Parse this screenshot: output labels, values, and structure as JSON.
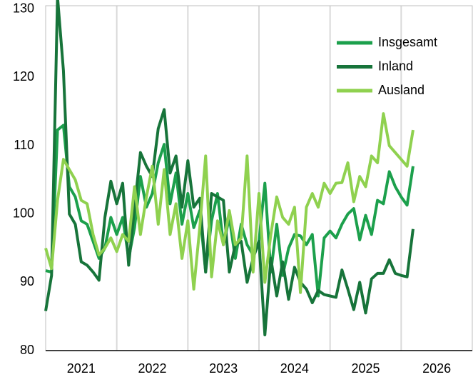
{
  "chart_data": {
    "type": "line",
    "x": [
      2021,
      2021.083,
      2021.167,
      2021.25,
      2021.333,
      2021.417,
      2021.5,
      2021.583,
      2021.667,
      2021.75,
      2021.833,
      2021.917,
      2022,
      2022.083,
      2022.167,
      2022.25,
      2022.333,
      2022.417,
      2022.5,
      2022.583,
      2022.667,
      2022.75,
      2022.833,
      2022.917,
      2023,
      2023.083,
      2023.167,
      2023.25,
      2023.333,
      2023.417,
      2023.5,
      2023.583,
      2023.667,
      2023.75,
      2023.833,
      2023.917,
      2024,
      2024.083,
      2024.167,
      2024.25,
      2024.333,
      2024.417,
      2024.5,
      2024.583,
      2024.667,
      2024.75,
      2024.833,
      2024.917,
      2025,
      2025.083,
      2025.167,
      2025.25,
      2025.333,
      2025.417,
      2025.5,
      2025.583,
      2025.667,
      2025.75,
      2025.833,
      2025.917,
      2026,
      2026.083,
      2026.167
    ],
    "series": [
      {
        "name": "Insgesamt",
        "color": "#1ca04c",
        "values": [
          91.7,
          91.5,
          112.3,
          113.0,
          104.0,
          102.5,
          99.0,
          98.5,
          96.0,
          93.5,
          95.0,
          99.5,
          97.0,
          99.5,
          93.5,
          98.0,
          105.5,
          101.0,
          103.0,
          107.5,
          110.2,
          101.5,
          106.0,
          98.5,
          103.0,
          98.0,
          100.5,
          91.5,
          99.0,
          103.0,
          95.5,
          99.5,
          93.5,
          98.5,
          95.5,
          94.0,
          96.0,
          104.5,
          91.5,
          98.5,
          91.0,
          95.0,
          97.0,
          96.8,
          95.5,
          97.0,
          88.0,
          96.5,
          97.5,
          96.5,
          98.5,
          100.0,
          100.8,
          96.2,
          99.8,
          97.0,
          102.0,
          101.5,
          106.2,
          104.0,
          102.5,
          101.3,
          107.0
        ]
      },
      {
        "name": "Inland",
        "color": "#17743a",
        "values": [
          85.8,
          91.0,
          131.8,
          121.0,
          100.0,
          98.5,
          93.0,
          92.5,
          91.5,
          90.3,
          99.5,
          104.8,
          101.5,
          104.5,
          92.5,
          101.0,
          109.0,
          107.0,
          105.5,
          112.5,
          115.3,
          106.0,
          108.5,
          101.0,
          107.8,
          101.0,
          102.3,
          91.5,
          103.0,
          102.5,
          102.0,
          91.5,
          95.5,
          96.0,
          90.0,
          93.5,
          96.0,
          82.3,
          93.5,
          88.0,
          93.0,
          87.5,
          92.2,
          90.0,
          89.0,
          87.0,
          88.8,
          88.2,
          88.0,
          87.8,
          91.8,
          89.0,
          86.0,
          90.0,
          85.5,
          90.5,
          91.3,
          91.3,
          93.3,
          91.3,
          91.0,
          90.8,
          97.8
        ]
      },
      {
        "name": "Ausland",
        "color": "#8fd14f",
        "values": [
          95.0,
          92.0,
          102.0,
          108.0,
          106.5,
          105.0,
          102.0,
          101.5,
          97.0,
          94.0,
          95.0,
          96.5,
          94.5,
          97.0,
          96.0,
          104.0,
          97.0,
          102.5,
          107.0,
          98.5,
          106.5,
          97.0,
          101.5,
          93.5,
          99.0,
          89.0,
          98.0,
          108.5,
          90.8,
          99.0,
          95.5,
          100.5,
          95.5,
          96.5,
          108.5,
          91.5,
          103.0,
          90.0,
          97.0,
          102.5,
          99.5,
          98.5,
          101.0,
          88.5,
          101.0,
          103.0,
          101.0,
          104.5,
          103.0,
          104.5,
          104.6,
          107.5,
          101.8,
          105.5,
          104.0,
          108.5,
          107.5,
          114.7,
          110.0,
          109.0,
          108.0,
          107.0,
          112.3
        ]
      }
    ],
    "xlim": [
      2021,
      2027
    ],
    "xticks": [
      2021,
      2022,
      2023,
      2024,
      2025,
      2026
    ],
    "ylim": [
      80,
      130.5
    ],
    "yticks": [
      80,
      90,
      100,
      110,
      120,
      130
    ],
    "grid": "x",
    "legend": "upper right"
  }
}
